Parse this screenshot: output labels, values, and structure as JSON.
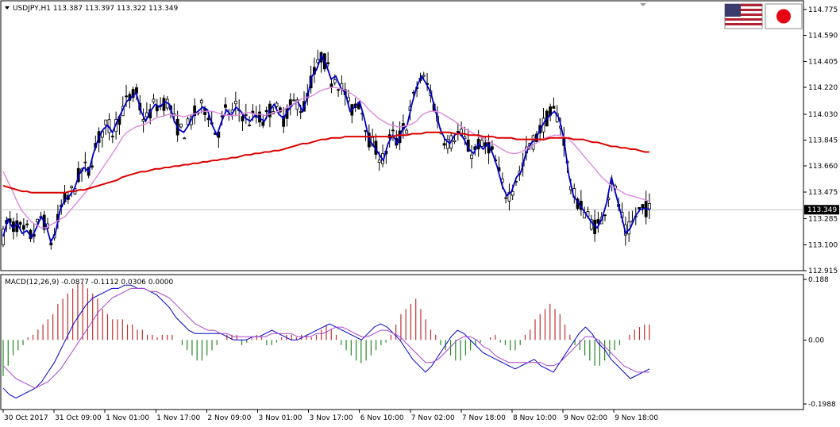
{
  "header": {
    "symbol_line": "USDJPY,H1  113.387 113.397 113.322 113.349",
    "macd_line": "MACD(12,26,9) -0.0877 -0.1112 0.0306 0.0000"
  },
  "current_price": "113.349",
  "flags": [
    "usa-flag",
    "japan-flag"
  ],
  "colors": {
    "ma_fast": "#0000cc",
    "ma_mid": "#dd88dd",
    "ma_slow": "#dd0000",
    "hist_pos": "#c03030",
    "hist_neg": "#228822",
    "macd_line": "#0000cc",
    "signal_line": "#aa44cc"
  },
  "chart_data": [
    {
      "type": "line",
      "panel": "price",
      "ylim": [
        112.915,
        114.775
      ],
      "price_ticks": [
        "114.775",
        "114.590",
        "114.405",
        "114.220",
        "114.030",
        "113.845",
        "113.660",
        "113.475",
        "113.285",
        "113.100",
        "112.915"
      ],
      "x_labels": [
        "30 Oct 2017",
        "31 Oct 09:00",
        "1 Nov 01:00",
        "1 Nov 17:00",
        "2 Nov 09:00",
        "3 Nov 01:00",
        "3 Nov 17:00",
        "6 Nov 10:00",
        "7 Nov 02:00",
        "7 Nov 18:00",
        "8 Nov 10:00",
        "9 Nov 02:00",
        "9 Nov 18:00"
      ],
      "series": [
        {
          "values": [
            113.16,
            113.28,
            113.22,
            113.25,
            113.18,
            113.2,
            113.15,
            113.22,
            113.3,
            113.24,
            113.12,
            113.18,
            113.35,
            113.42,
            113.45,
            113.5,
            113.6,
            113.65,
            113.62,
            113.75,
            113.85,
            113.92,
            113.95,
            113.9,
            113.98,
            114.05,
            114.12,
            114.15,
            114.18,
            114.05,
            113.98,
            114.05,
            114.1,
            114.08,
            114.12,
            114.1,
            113.98,
            113.92,
            113.9,
            113.95,
            114.02,
            114.05,
            114.08,
            114.06,
            113.95,
            113.88,
            113.98,
            114.06,
            114.02,
            114.08,
            114.05,
            114.0,
            113.98,
            114.02,
            114.0,
            113.98,
            114.05,
            114.1,
            114.03,
            114.0,
            114.06,
            114.1,
            114.12,
            114.05,
            114.15,
            114.3,
            114.35,
            114.45,
            114.38,
            114.28,
            114.3,
            114.22,
            114.18,
            114.05,
            114.08,
            114.12,
            114.0,
            113.85,
            113.8,
            113.75,
            113.7,
            113.82,
            113.88,
            113.82,
            113.92,
            113.95,
            114.1,
            114.22,
            114.3,
            114.25,
            114.18,
            114.05,
            113.92,
            113.85,
            113.82,
            113.88,
            113.9,
            113.85,
            113.78,
            113.75,
            113.82,
            113.78,
            113.82,
            113.75,
            113.65,
            113.52,
            113.45,
            113.48,
            113.58,
            113.62,
            113.75,
            113.82,
            113.85,
            113.92,
            113.98,
            114.02,
            114.05,
            114.0,
            113.85,
            113.6,
            113.45,
            113.4,
            113.35,
            113.3,
            113.25,
            113.22,
            113.28,
            113.4,
            113.58,
            113.45,
            113.32,
            113.18,
            113.22,
            113.3,
            113.35,
            113.36,
            113.35
          ],
          "color_key": "ma_fast"
        },
        {
          "values": [
            113.62,
            113.55,
            113.48,
            113.4,
            113.34,
            113.3,
            113.26,
            113.24,
            113.22,
            113.22,
            113.24,
            113.26,
            113.28,
            113.3,
            113.34,
            113.38,
            113.42,
            113.46,
            113.5,
            113.55,
            113.6,
            113.65,
            113.7,
            113.75,
            113.8,
            113.86,
            113.9,
            113.92,
            113.94,
            113.95,
            113.96,
            113.98,
            114.0,
            114.01,
            114.02,
            114.03,
            114.02,
            114.02,
            114.01,
            114.02,
            114.03,
            114.04,
            114.05,
            114.05,
            114.05,
            114.04,
            114.03,
            114.02,
            114.02,
            114.02,
            114.03,
            114.04,
            114.04,
            114.03,
            114.03,
            114.02,
            114.03,
            114.04,
            114.05,
            114.06,
            114.08,
            114.1,
            114.12,
            114.14,
            114.15,
            114.16,
            114.18,
            114.2,
            114.21,
            114.22,
            114.22,
            114.21,
            114.2,
            114.18,
            114.16,
            114.13,
            114.1,
            114.06,
            114.03,
            114.0,
            113.98,
            113.96,
            113.95,
            113.94,
            113.94,
            113.95,
            113.96,
            113.98,
            114.02,
            114.04,
            114.05,
            114.05,
            114.04,
            114.02,
            114.0,
            113.98,
            113.95,
            113.93,
            113.91,
            113.89,
            113.87,
            113.86,
            113.84,
            113.82,
            113.8,
            113.78,
            113.76,
            113.75,
            113.75,
            113.76,
            113.78,
            113.8,
            113.82,
            113.84,
            113.86,
            113.87,
            113.88,
            113.88,
            113.87,
            113.85,
            113.82,
            113.78,
            113.74,
            113.7,
            113.66,
            113.62,
            113.58,
            113.55,
            113.52,
            113.5,
            113.48,
            113.46,
            113.45,
            113.44,
            113.43,
            113.42,
            113.41
          ],
          "color_key": "ma_mid"
        },
        {
          "values": [
            113.52,
            113.51,
            113.5,
            113.49,
            113.48,
            113.48,
            113.47,
            113.47,
            113.47,
            113.47,
            113.47,
            113.47,
            113.47,
            113.47,
            113.48,
            113.48,
            113.49,
            113.49,
            113.5,
            113.51,
            113.52,
            113.53,
            113.54,
            113.55,
            113.56,
            113.58,
            113.59,
            113.6,
            113.61,
            113.62,
            113.62,
            113.63,
            113.64,
            113.64,
            113.65,
            113.65,
            113.66,
            113.66,
            113.67,
            113.67,
            113.68,
            113.68,
            113.69,
            113.69,
            113.7,
            113.7,
            113.71,
            113.71,
            113.72,
            113.72,
            113.73,
            113.74,
            113.74,
            113.75,
            113.75,
            113.76,
            113.76,
            113.77,
            113.77,
            113.78,
            113.79,
            113.8,
            113.81,
            113.82,
            113.82,
            113.83,
            113.84,
            113.85,
            113.85,
            113.86,
            113.86,
            113.86,
            113.87,
            113.87,
            113.87,
            113.87,
            113.87,
            113.87,
            113.87,
            113.87,
            113.87,
            113.87,
            113.87,
            113.88,
            113.88,
            113.88,
            113.89,
            113.89,
            113.89,
            113.9,
            113.9,
            113.9,
            113.9,
            113.9,
            113.9,
            113.89,
            113.89,
            113.89,
            113.88,
            113.88,
            113.88,
            113.87,
            113.87,
            113.87,
            113.86,
            113.86,
            113.86,
            113.86,
            113.85,
            113.85,
            113.85,
            113.85,
            113.85,
            113.85,
            113.85,
            113.86,
            113.86,
            113.86,
            113.86,
            113.86,
            113.85,
            113.85,
            113.85,
            113.84,
            113.83,
            113.83,
            113.82,
            113.81,
            113.8,
            113.8,
            113.79,
            113.79,
            113.78,
            113.78,
            113.77,
            113.76,
            113.76
          ],
          "color_key": "ma_slow"
        }
      ]
    },
    {
      "type": "bar",
      "panel": "macd",
      "ylim": [
        -0.1988,
        0.188
      ],
      "ticks": [
        "0.188",
        "0.00",
        "-0.1988"
      ],
      "histogram": [
        -0.07,
        -0.05,
        -0.03,
        -0.02,
        -0.01,
        0.005,
        0.01,
        0.02,
        0.03,
        0.04,
        0.05,
        0.07,
        0.08,
        0.09,
        0.1,
        0.11,
        0.11,
        0.1,
        0.09,
        0.08,
        0.06,
        0.05,
        0.04,
        0.04,
        0.04,
        0.03,
        0.03,
        0.02,
        0.02,
        0.01,
        0.01,
        0.005,
        0.01,
        0.01,
        0.01,
        0.0,
        -0.01,
        -0.02,
        -0.03,
        -0.04,
        -0.04,
        -0.03,
        -0.02,
        -0.01,
        0.0,
        0.01,
        0.01,
        0.01,
        -0.01,
        -0.005,
        0.005,
        0.01,
        0.005,
        -0.01,
        -0.01,
        -0.005,
        0.005,
        0.01,
        0.01,
        0.005,
        0.01,
        0.01,
        0.005,
        0.01,
        0.02,
        0.03,
        0.02,
        0.01,
        -0.01,
        -0.02,
        -0.03,
        -0.04,
        -0.045,
        -0.04,
        -0.03,
        -0.02,
        -0.01,
        -0.005,
        0.01,
        0.03,
        0.05,
        0.06,
        0.07,
        0.08,
        0.06,
        0.04,
        0.02,
        0.01,
        -0.01,
        -0.02,
        -0.03,
        -0.04,
        -0.04,
        -0.03,
        -0.02,
        -0.01,
        -0.005,
        0.0,
        0.005,
        0.01,
        -0.005,
        -0.01,
        -0.02,
        -0.02,
        -0.01,
        0.01,
        0.02,
        0.04,
        0.05,
        0.06,
        0.07,
        0.06,
        0.05,
        0.03,
        0.01,
        -0.01,
        -0.02,
        -0.03,
        -0.04,
        -0.05,
        -0.05,
        -0.04,
        -0.03,
        -0.02,
        -0.01,
        0.0,
        0.01,
        0.02,
        0.025,
        0.03,
        0.03
      ],
      "macd": [
        -0.15,
        -0.17,
        -0.18,
        -0.17,
        -0.16,
        -0.15,
        -0.13,
        -0.1,
        -0.07,
        -0.03,
        0.01,
        0.05,
        0.08,
        0.11,
        0.13,
        0.14,
        0.15,
        0.16,
        0.16,
        0.17,
        0.17,
        0.16,
        0.16,
        0.15,
        0.14,
        0.12,
        0.1,
        0.07,
        0.05,
        0.03,
        0.02,
        0.02,
        0.02,
        0.02,
        0.02,
        0.01,
        0.0,
        0.0,
        0.0,
        0.01,
        0.01,
        0.02,
        0.03,
        0.02,
        0.01,
        0.0,
        0.0,
        0.01,
        0.02,
        0.03,
        0.04,
        0.05,
        0.04,
        0.03,
        0.02,
        0.01,
        0.0,
        0.02,
        0.04,
        0.05,
        0.04,
        0.02,
        0.0,
        -0.03,
        -0.06,
        -0.08,
        -0.1,
        -0.08,
        -0.05,
        -0.02,
        0.01,
        0.03,
        0.02,
        0.0,
        -0.02,
        -0.04,
        -0.05,
        -0.06,
        -0.07,
        -0.08,
        -0.09,
        -0.08,
        -0.07,
        -0.06,
        -0.08,
        -0.09,
        -0.1,
        -0.07,
        -0.04,
        -0.01,
        0.02,
        0.04,
        0.02,
        -0.01,
        -0.03,
        -0.06,
        -0.08,
        -0.1,
        -0.12,
        -0.11,
        -0.1,
        -0.09
      ],
      "signal": [
        -0.08,
        -0.1,
        -0.12,
        -0.13,
        -0.14,
        -0.15,
        -0.14,
        -0.13,
        -0.11,
        -0.09,
        -0.06,
        -0.03,
        0.0,
        0.03,
        0.06,
        0.09,
        0.11,
        0.13,
        0.14,
        0.15,
        0.16,
        0.16,
        0.16,
        0.15,
        0.15,
        0.14,
        0.13,
        0.11,
        0.09,
        0.07,
        0.05,
        0.04,
        0.03,
        0.03,
        0.02,
        0.02,
        0.01,
        0.01,
        0.01,
        0.01,
        0.01,
        0.01,
        0.02,
        0.02,
        0.02,
        0.02,
        0.01,
        0.01,
        0.01,
        0.02,
        0.02,
        0.03,
        0.04,
        0.04,
        0.03,
        0.02,
        0.01,
        0.01,
        0.02,
        0.03,
        0.03,
        0.02,
        0.01,
        -0.01,
        -0.03,
        -0.05,
        -0.07,
        -0.07,
        -0.06,
        -0.04,
        -0.02,
        0.0,
        0.01,
        0.01,
        0.0,
        -0.02,
        -0.03,
        -0.05,
        -0.06,
        -0.07,
        -0.07,
        -0.07,
        -0.07,
        -0.07,
        -0.07,
        -0.08,
        -0.08,
        -0.07,
        -0.05,
        -0.03,
        -0.01,
        0.01,
        0.01,
        0.0,
        -0.02,
        -0.04,
        -0.06,
        -0.08,
        -0.09,
        -0.1,
        -0.1,
        -0.1
      ]
    }
  ]
}
